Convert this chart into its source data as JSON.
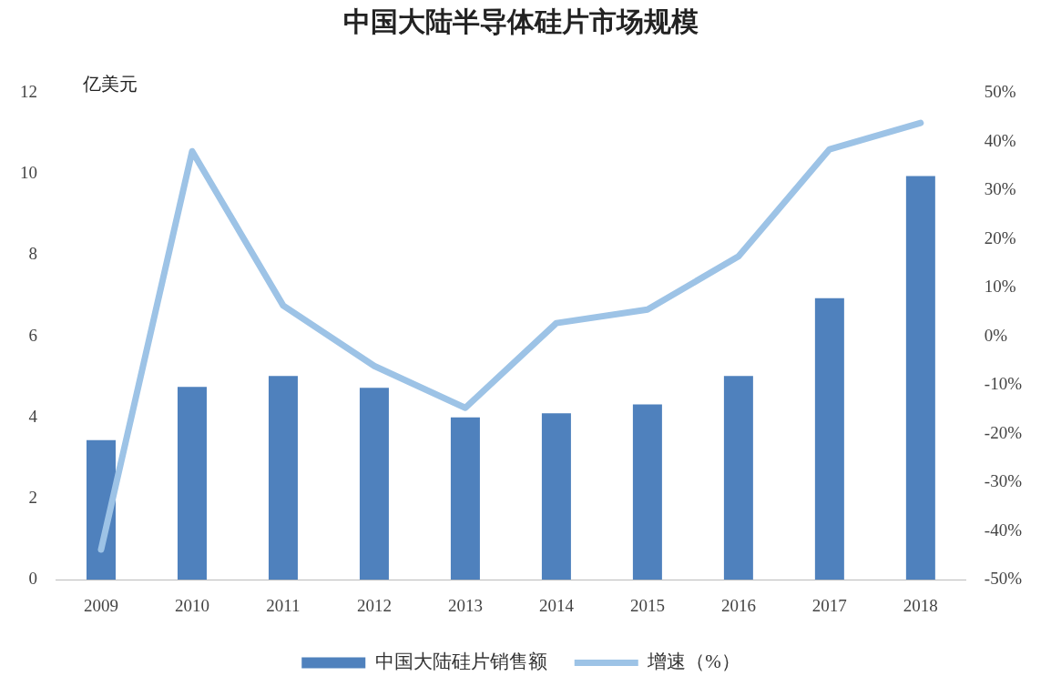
{
  "chart_data": {
    "type": "bar",
    "title": "中国大陆半导体硅片市场规模",
    "ylabel": "亿美元",
    "categories": [
      "2009",
      "2010",
      "2011",
      "2012",
      "2013",
      "2014",
      "2015",
      "2016",
      "2017",
      "2018"
    ],
    "series": [
      {
        "name": "中国大陆硅片销售额",
        "color": "#4f81bd",
        "values": [
          3.44,
          4.75,
          5.02,
          4.73,
          4.0,
          4.1,
          4.32,
          5.02,
          6.94,
          9.95
        ]
      },
      {
        "name": "增速（%）",
        "type": "line",
        "axis": "y2",
        "color": "#9dc3e6",
        "values": [
          -43.8,
          38.0,
          6.3,
          -6.1,
          -14.7,
          2.7,
          5.5,
          16.4,
          38.4,
          43.8
        ]
      }
    ],
    "ylim": [
      0,
      12
    ],
    "yticks": [
      0,
      2,
      4,
      6,
      8,
      10,
      12
    ],
    "y2lim": [
      -50,
      50
    ],
    "y2ticks": [
      {
        "value": -50,
        "label": "-50%"
      },
      {
        "value": -40,
        "label": "-40%"
      },
      {
        "value": -30,
        "label": "-30%"
      },
      {
        "value": -20,
        "label": "-20%"
      },
      {
        "value": -10,
        "label": "-10%"
      },
      {
        "value": 0,
        "label": "0%"
      },
      {
        "value": 10,
        "label": "10%"
      },
      {
        "value": 20,
        "label": "20%"
      },
      {
        "value": 30,
        "label": "30%"
      },
      {
        "value": 40,
        "label": "40%"
      },
      {
        "value": 50,
        "label": "50%"
      }
    ],
    "grid": false,
    "legend": "bottom",
    "marker": "none",
    "line_style": "solid"
  }
}
